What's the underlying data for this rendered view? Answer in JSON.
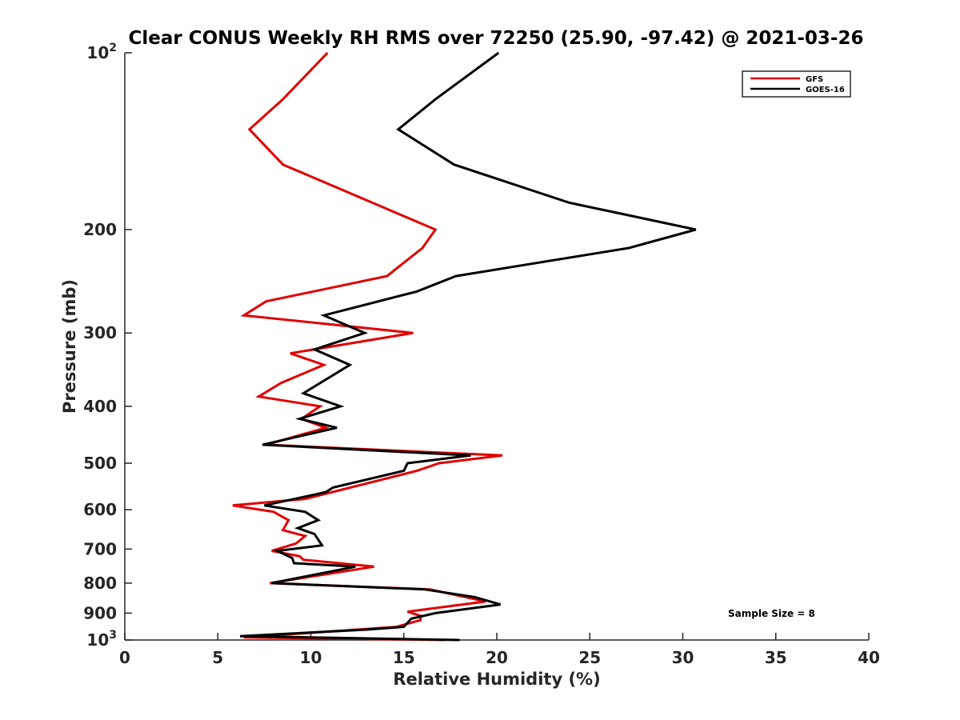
{
  "chart_data": {
    "type": "line",
    "title": "Clear CONUS Weekly RH RMS over 72250 (25.90, -97.42) @ 2021-03-26",
    "xlabel": "Relative Humidity (%)",
    "ylabel": "Pressure (mb)",
    "xlim": [
      0,
      40
    ],
    "ylim": [
      100,
      1000
    ],
    "y_scale": "log",
    "y_reversed": true,
    "x_ticks": [
      0,
      5,
      10,
      15,
      20,
      25,
      30,
      35,
      40
    ],
    "x_tick_labels": [
      "0",
      "5",
      "10",
      "15",
      "20",
      "25",
      "30",
      "35",
      "40"
    ],
    "y_ticks": [
      200,
      300,
      400,
      500,
      600,
      700,
      800,
      900
    ],
    "y_tick_labels": [
      "200",
      "300",
      "400",
      "500",
      "600",
      "700",
      "800",
      "900"
    ],
    "y_power_labels": [
      {
        "value": 100,
        "base": "10",
        "exp": "2"
      },
      {
        "value": 1000,
        "base": "10",
        "exp": "3"
      }
    ],
    "grid": false,
    "legend_position": "top-right",
    "annotation": "Sample Size = 8",
    "series": [
      {
        "name": "GFS",
        "color": "#e00000",
        "points": [
          [
            10.9,
            100
          ],
          [
            8.5,
            120
          ],
          [
            6.7,
            135
          ],
          [
            8.5,
            155
          ],
          [
            16.7,
            200
          ],
          [
            16.0,
            215
          ],
          [
            14.1,
            240
          ],
          [
            7.6,
            265
          ],
          [
            6.4,
            280
          ],
          [
            15.5,
            300
          ],
          [
            8.9,
            325
          ],
          [
            10.7,
            340
          ],
          [
            8.4,
            365
          ],
          [
            7.2,
            385
          ],
          [
            10.5,
            400
          ],
          [
            9.5,
            420
          ],
          [
            10.8,
            435
          ],
          [
            7.6,
            465
          ],
          [
            20.3,
            485
          ],
          [
            16.9,
            500
          ],
          [
            15.7,
            515
          ],
          [
            9.7,
            575
          ],
          [
            5.8,
            590
          ],
          [
            8.0,
            605
          ],
          [
            8.8,
            625
          ],
          [
            8.5,
            650
          ],
          [
            9.7,
            665
          ],
          [
            9.2,
            685
          ],
          [
            7.9,
            705
          ],
          [
            9.4,
            720
          ],
          [
            9.6,
            730
          ],
          [
            13.4,
            750
          ],
          [
            7.8,
            800
          ],
          [
            16.4,
            820
          ],
          [
            19.4,
            860
          ],
          [
            15.2,
            895
          ],
          [
            15.9,
            910
          ],
          [
            15.9,
            925
          ],
          [
            14.6,
            950
          ],
          [
            6.4,
            990
          ],
          [
            17.2,
            1000
          ]
        ]
      },
      {
        "name": "GOES-16",
        "color": "#000000",
        "points": [
          [
            20.1,
            100
          ],
          [
            16.7,
            120
          ],
          [
            14.7,
            135
          ],
          [
            17.7,
            155
          ],
          [
            23.9,
            180
          ],
          [
            30.7,
            200
          ],
          [
            27.1,
            215
          ],
          [
            17.8,
            240
          ],
          [
            15.7,
            255
          ],
          [
            10.7,
            280
          ],
          [
            12.9,
            300
          ],
          [
            10.2,
            320
          ],
          [
            12.1,
            340
          ],
          [
            9.6,
            380
          ],
          [
            11.6,
            400
          ],
          [
            9.4,
            420
          ],
          [
            11.4,
            435
          ],
          [
            7.4,
            465
          ],
          [
            18.6,
            485
          ],
          [
            15.2,
            500
          ],
          [
            15.0,
            515
          ],
          [
            11.2,
            550
          ],
          [
            10.8,
            560
          ],
          [
            7.5,
            590
          ],
          [
            9.7,
            605
          ],
          [
            10.4,
            625
          ],
          [
            9.3,
            645
          ],
          [
            10.2,
            660
          ],
          [
            10.6,
            690
          ],
          [
            8.2,
            705
          ],
          [
            9.0,
            725
          ],
          [
            9.1,
            740
          ],
          [
            12.4,
            750
          ],
          [
            7.9,
            800
          ],
          [
            16.1,
            820
          ],
          [
            18.8,
            845
          ],
          [
            20.2,
            870
          ],
          [
            16.7,
            900
          ],
          [
            15.4,
            920
          ],
          [
            15.0,
            950
          ],
          [
            13.0,
            960
          ],
          [
            6.2,
            985
          ],
          [
            18.0,
            1000
          ]
        ]
      }
    ]
  }
}
